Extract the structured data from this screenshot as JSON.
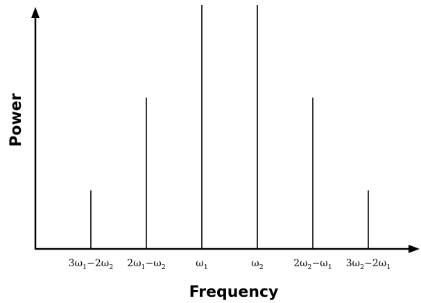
{
  "chart_data": {
    "type": "bar",
    "xlabel": "Frequency",
    "ylabel": "Power",
    "categories": [
      [
        {
          "t": "3ω"
        },
        {
          "s": "1"
        },
        {
          "t": "−2ω"
        },
        {
          "s": "2"
        }
      ],
      [
        {
          "t": "2ω"
        },
        {
          "s": "1"
        },
        {
          "t": "−ω"
        },
        {
          "s": "2"
        }
      ],
      [
        {
          "t": "ω"
        },
        {
          "s": "1"
        }
      ],
      [
        {
          "t": "ω"
        },
        {
          "s": "2"
        }
      ],
      [
        {
          "t": "2ω"
        },
        {
          "s": "2"
        },
        {
          "t": "−ω"
        },
        {
          "s": "1"
        }
      ],
      [
        {
          "t": "3ω"
        },
        {
          "s": "2"
        },
        {
          "t": "−2ω"
        },
        {
          "s": "1"
        }
      ]
    ],
    "values": [
      0.24,
      0.62,
      1.0,
      1.0,
      0.62,
      0.24
    ],
    "ylim": [
      0,
      1.0
    ],
    "grid": false,
    "legend": "none"
  }
}
